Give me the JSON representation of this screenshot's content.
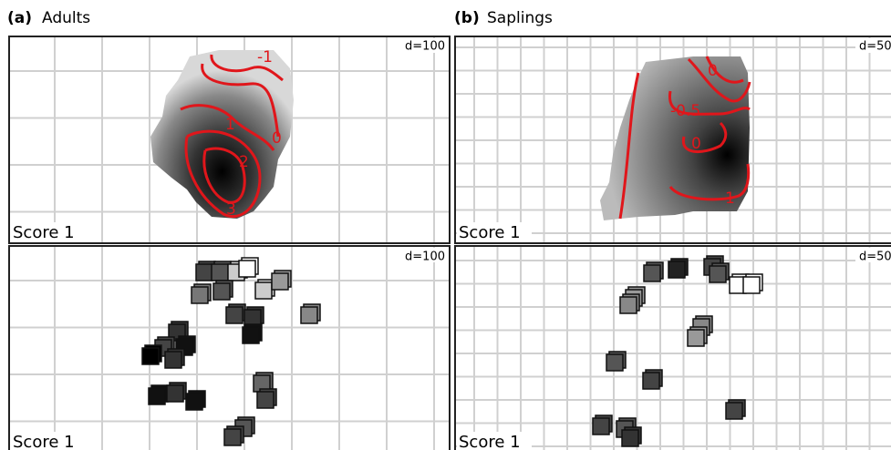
{
  "panels": [
    {
      "tag": "(a)",
      "title": "Adults",
      "maps": [
        {
          "d_label": "d=100",
          "score_label": "Score 1",
          "contour_labels": [
            "-1",
            "0",
            "1",
            "2",
            "3"
          ]
        },
        {
          "d_label": "d=100",
          "score_label": "Score 1"
        }
      ]
    },
    {
      "tag": "(b)",
      "title": "Saplings",
      "maps": [
        {
          "d_label": "d=50",
          "score_label": "Score 1",
          "contour_labels": [
            "0",
            "-0.5",
            "0",
            "1"
          ]
        },
        {
          "d_label": "d=50",
          "score_label": "Score 1"
        }
      ]
    }
  ]
}
